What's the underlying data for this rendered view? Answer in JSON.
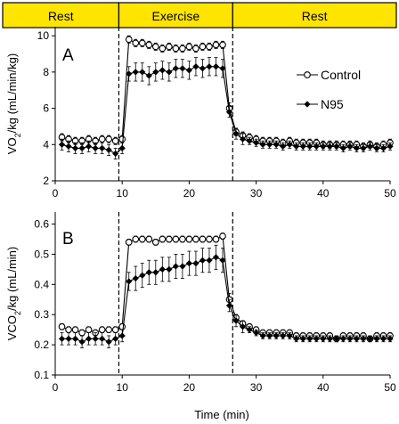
{
  "colors": {
    "phase_fill": "#FFE400",
    "line": "#000000",
    "background": "#FFFFFF"
  },
  "phases": [
    {
      "label": "Rest",
      "start": 0,
      "end": 10
    },
    {
      "label": "Exercise",
      "start": 10,
      "end": 26
    },
    {
      "label": "Rest",
      "start": 26,
      "end": 50
    }
  ],
  "xlabel": "Time (min)",
  "legend": {
    "control": "Control",
    "n95": "N95"
  },
  "chart_data": [
    {
      "panel": "A",
      "type": "line",
      "ylabel_main": "VO",
      "ylabel_sub": "2",
      "ylabel_rest": "/kg (mL/min/kg)",
      "xlim": [
        0,
        50
      ],
      "ylim": [
        2,
        10.5
      ],
      "xticks": [
        0,
        10,
        20,
        30,
        40,
        50
      ],
      "yticks": [
        2,
        4,
        6,
        8,
        10
      ],
      "vlines": [
        9.5,
        26.5
      ],
      "series": [
        {
          "name": "Control",
          "marker": "open-circle",
          "x": [
            1,
            2,
            3,
            4,
            5,
            6,
            7,
            8,
            9,
            10,
            11,
            12,
            13,
            14,
            15,
            16,
            17,
            18,
            19,
            20,
            21,
            22,
            23,
            24,
            25,
            26,
            27,
            28,
            29,
            30,
            31,
            32,
            33,
            34,
            35,
            36,
            37,
            38,
            39,
            40,
            41,
            42,
            43,
            44,
            45,
            46,
            47,
            48,
            49,
            50
          ],
          "y": [
            4.4,
            4.3,
            4.2,
            4.2,
            4.3,
            4.2,
            4.3,
            4.3,
            4.2,
            4.3,
            9.8,
            9.6,
            9.6,
            9.5,
            9.4,
            9.3,
            9.4,
            9.3,
            9.3,
            9.4,
            9.3,
            9.4,
            9.4,
            9.5,
            9.5,
            6.0,
            4.7,
            4.5,
            4.4,
            4.3,
            4.2,
            4.2,
            4.2,
            4.1,
            4.2,
            4.1,
            4.1,
            4.1,
            4.1,
            4.0,
            4.0,
            4.0,
            4.0,
            4.0,
            4.0,
            3.9,
            4.0,
            3.9,
            4.0,
            4.1
          ],
          "err": [
            0.2,
            0.2,
            0.2,
            0.2,
            0.2,
            0.2,
            0.2,
            0.2,
            0.2,
            0.2,
            0.2,
            0.2,
            0.2,
            0.2,
            0.2,
            0.2,
            0.2,
            0.2,
            0.2,
            0.2,
            0.2,
            0.2,
            0.2,
            0.2,
            0.2,
            0.3,
            0.2,
            0.2,
            0.2,
            0.2,
            0.2,
            0.2,
            0.2,
            0.2,
            0.2,
            0.2,
            0.2,
            0.2,
            0.2,
            0.2,
            0.2,
            0.2,
            0.2,
            0.2,
            0.2,
            0.2,
            0.2,
            0.2,
            0.2,
            0.2
          ]
        },
        {
          "name": "N95",
          "marker": "filled-diamond",
          "x": [
            1,
            2,
            3,
            4,
            5,
            6,
            7,
            8,
            9,
            10,
            11,
            12,
            13,
            14,
            15,
            16,
            17,
            18,
            19,
            20,
            21,
            22,
            23,
            24,
            25,
            26,
            27,
            28,
            29,
            30,
            31,
            32,
            33,
            34,
            35,
            36,
            37,
            38,
            39,
            40,
            41,
            42,
            43,
            44,
            45,
            46,
            47,
            48,
            49,
            50
          ],
          "y": [
            4.0,
            3.9,
            3.8,
            3.8,
            3.9,
            3.8,
            3.8,
            3.7,
            3.5,
            3.8,
            7.9,
            8.0,
            8.0,
            7.8,
            8.0,
            8.1,
            8.0,
            8.2,
            8.2,
            8.1,
            8.3,
            8.2,
            8.3,
            8.3,
            8.2,
            5.8,
            4.6,
            4.3,
            4.2,
            4.1,
            4.0,
            4.0,
            4.0,
            3.9,
            4.0,
            3.9,
            3.9,
            3.9,
            3.9,
            3.9,
            3.9,
            3.9,
            3.8,
            3.9,
            3.8,
            3.8,
            3.9,
            3.8,
            3.8,
            3.9
          ],
          "err": [
            0.3,
            0.3,
            0.3,
            0.3,
            0.3,
            0.3,
            0.3,
            0.3,
            0.3,
            0.3,
            0.4,
            0.5,
            0.5,
            0.5,
            0.5,
            0.5,
            0.5,
            0.5,
            0.5,
            0.5,
            0.5,
            0.5,
            0.5,
            0.5,
            0.5,
            0.3,
            0.3,
            0.3,
            0.2,
            0.2,
            0.2,
            0.2,
            0.2,
            0.2,
            0.2,
            0.2,
            0.2,
            0.2,
            0.2,
            0.2,
            0.2,
            0.2,
            0.2,
            0.2,
            0.2,
            0.2,
            0.2,
            0.2,
            0.2,
            0.2
          ]
        }
      ]
    },
    {
      "panel": "B",
      "type": "line",
      "ylabel_main": "VCO",
      "ylabel_sub": "2",
      "ylabel_rest": "/kg (mL/min)",
      "xlim": [
        0,
        50
      ],
      "ylim": [
        0.1,
        0.64
      ],
      "xticks": [
        0,
        10,
        20,
        30,
        40,
        50
      ],
      "yticks": [
        0.1,
        0.2,
        0.3,
        0.4,
        0.5,
        0.6
      ],
      "vlines": [
        9.5,
        26.5
      ],
      "series": [
        {
          "name": "Control",
          "marker": "open-circle",
          "x": [
            1,
            2,
            3,
            4,
            5,
            6,
            7,
            8,
            9,
            10,
            11,
            12,
            13,
            14,
            15,
            16,
            17,
            18,
            19,
            20,
            21,
            22,
            23,
            24,
            25,
            26,
            27,
            28,
            29,
            30,
            31,
            32,
            33,
            34,
            35,
            36,
            37,
            38,
            39,
            40,
            41,
            42,
            43,
            44,
            45,
            46,
            47,
            48,
            49,
            50
          ],
          "y": [
            0.26,
            0.25,
            0.25,
            0.24,
            0.25,
            0.24,
            0.25,
            0.25,
            0.25,
            0.26,
            0.54,
            0.55,
            0.55,
            0.55,
            0.54,
            0.55,
            0.55,
            0.55,
            0.55,
            0.55,
            0.55,
            0.55,
            0.55,
            0.55,
            0.56,
            0.35,
            0.29,
            0.27,
            0.26,
            0.25,
            0.24,
            0.24,
            0.24,
            0.24,
            0.24,
            0.23,
            0.23,
            0.23,
            0.23,
            0.23,
            0.23,
            0.22,
            0.23,
            0.23,
            0.23,
            0.23,
            0.22,
            0.23,
            0.23,
            0.23
          ],
          "err": [
            0.01,
            0.01,
            0.01,
            0.01,
            0.01,
            0.01,
            0.01,
            0.01,
            0.01,
            0.01,
            0.01,
            0.01,
            0.01,
            0.01,
            0.01,
            0.01,
            0.01,
            0.01,
            0.01,
            0.01,
            0.01,
            0.01,
            0.01,
            0.01,
            0.01,
            0.02,
            0.01,
            0.01,
            0.01,
            0.01,
            0.01,
            0.01,
            0.01,
            0.01,
            0.01,
            0.01,
            0.01,
            0.01,
            0.01,
            0.01,
            0.01,
            0.01,
            0.01,
            0.01,
            0.01,
            0.01,
            0.01,
            0.01,
            0.01,
            0.01
          ]
        },
        {
          "name": "N95",
          "marker": "filled-diamond",
          "x": [
            1,
            2,
            3,
            4,
            5,
            6,
            7,
            8,
            9,
            10,
            11,
            12,
            13,
            14,
            15,
            16,
            17,
            18,
            19,
            20,
            21,
            22,
            23,
            24,
            25,
            26,
            27,
            28,
            29,
            30,
            31,
            32,
            33,
            34,
            35,
            36,
            37,
            38,
            39,
            40,
            41,
            42,
            43,
            44,
            45,
            46,
            47,
            48,
            49,
            50
          ],
          "y": [
            0.22,
            0.22,
            0.22,
            0.21,
            0.22,
            0.22,
            0.22,
            0.21,
            0.22,
            0.23,
            0.41,
            0.42,
            0.43,
            0.44,
            0.44,
            0.45,
            0.45,
            0.46,
            0.46,
            0.47,
            0.47,
            0.48,
            0.48,
            0.49,
            0.48,
            0.33,
            0.28,
            0.26,
            0.25,
            0.24,
            0.23,
            0.23,
            0.23,
            0.23,
            0.23,
            0.22,
            0.22,
            0.22,
            0.22,
            0.22,
            0.22,
            0.22,
            0.22,
            0.22,
            0.22,
            0.22,
            0.22,
            0.22,
            0.22,
            0.22
          ],
          "err": [
            0.02,
            0.02,
            0.02,
            0.02,
            0.02,
            0.02,
            0.02,
            0.02,
            0.02,
            0.02,
            0.03,
            0.04,
            0.04,
            0.04,
            0.04,
            0.04,
            0.04,
            0.04,
            0.04,
            0.04,
            0.04,
            0.04,
            0.04,
            0.04,
            0.04,
            0.02,
            0.02,
            0.02,
            0.01,
            0.01,
            0.01,
            0.01,
            0.01,
            0.01,
            0.01,
            0.01,
            0.01,
            0.01,
            0.01,
            0.01,
            0.01,
            0.01,
            0.01,
            0.01,
            0.01,
            0.01,
            0.01,
            0.01,
            0.01,
            0.01
          ]
        }
      ]
    }
  ]
}
